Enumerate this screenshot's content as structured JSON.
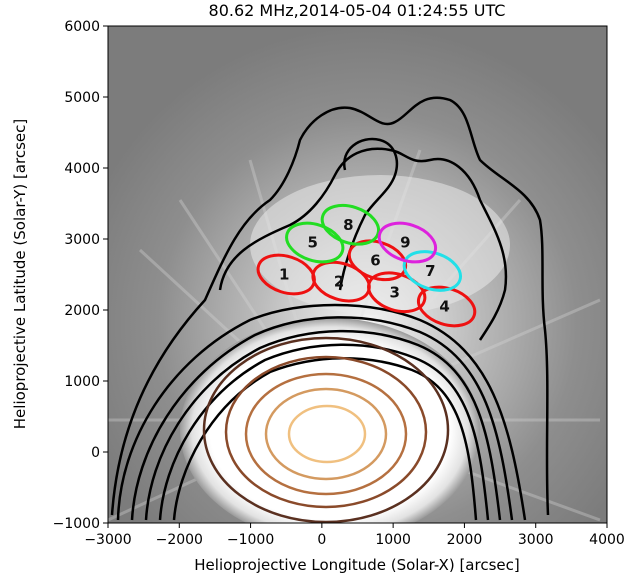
{
  "title": "80.62 MHz,2014-05-04 01:24:55 UTC",
  "xlabel": "Helioprojective Longitude (Solar-X) [arcsec]",
  "ylabel": "Helioprojective Latitude (Solar-Y) [arcsec]",
  "xlim": [
    -3000,
    4000
  ],
  "ylim": [
    -1000,
    6000
  ],
  "xticks": [
    -3000,
    -2000,
    -1000,
    0,
    1000,
    2000,
    3000,
    4000
  ],
  "yticks": [
    -1000,
    0,
    1000,
    2000,
    3000,
    4000,
    5000,
    6000
  ],
  "xtick_labels": [
    "−3000",
    "−2000",
    "−1000",
    "0",
    "1000",
    "2000",
    "3000",
    "4000"
  ],
  "ytick_labels": [
    "−1000",
    "0",
    "1000",
    "2000",
    "3000",
    "4000",
    "5000",
    "6000"
  ],
  "beams": [
    {
      "label": "1",
      "x": -500,
      "y": 2500,
      "color": "#ee1111"
    },
    {
      "label": "2",
      "x": 270,
      "y": 2400,
      "color": "#ee1111"
    },
    {
      "label": "3",
      "x": 1050,
      "y": 2250,
      "color": "#ee1111"
    },
    {
      "label": "4",
      "x": 1750,
      "y": 2050,
      "color": "#ee1111"
    },
    {
      "label": "5",
      "x": -100,
      "y": 2950,
      "color": "#22dd22"
    },
    {
      "label": "6",
      "x": 780,
      "y": 2700,
      "color": "#ee1111"
    },
    {
      "label": "7",
      "x": 1550,
      "y": 2550,
      "color": "#22e0e8"
    },
    {
      "label": "8",
      "x": 400,
      "y": 3200,
      "color": "#22dd22"
    },
    {
      "label": "9",
      "x": 1200,
      "y": 2950,
      "color": "#dd22dd"
    }
  ],
  "colors": {
    "background_image": "#8a8a8a",
    "disk_core": "#ffffff",
    "contour_outer": "#000000",
    "contour_inner": [
      "#5a3020",
      "#8a4a2a",
      "#b57040",
      "#d49a60",
      "#f0c080"
    ]
  }
}
